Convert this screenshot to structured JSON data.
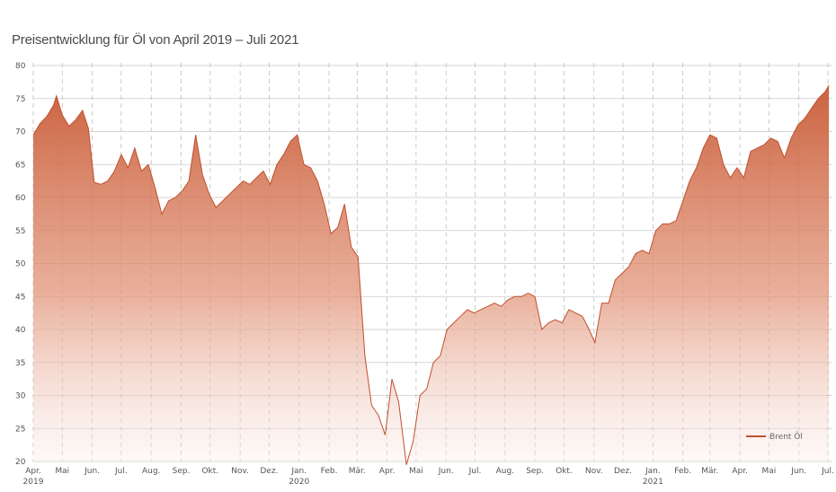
{
  "title": "Preisentwicklung für Öl von April 2019 – Juli 2021",
  "chart_data": {
    "type": "area",
    "title": "Preisentwicklung für Öl von April 2019 – Juli 2021",
    "ylim": [
      20,
      80
    ],
    "yticks": [
      20,
      25,
      30,
      35,
      40,
      45,
      50,
      55,
      60,
      65,
      70,
      75,
      80
    ],
    "grid": true,
    "legend_position": "bottom-right",
    "color": "#c0502e",
    "xticks": [
      {
        "label": "Apr.",
        "year": "2019"
      },
      {
        "label": "Mai"
      },
      {
        "label": "Jun."
      },
      {
        "label": "Jul."
      },
      {
        "label": "Aug."
      },
      {
        "label": "Sep."
      },
      {
        "label": "Okt."
      },
      {
        "label": "Nov."
      },
      {
        "label": "Dez."
      },
      {
        "label": "Jan.",
        "year": "2020"
      },
      {
        "label": "Feb."
      },
      {
        "label": "Mär."
      },
      {
        "label": "Apr."
      },
      {
        "label": "Mai"
      },
      {
        "label": "Jun."
      },
      {
        "label": "Jul."
      },
      {
        "label": "Aug."
      },
      {
        "label": "Sep."
      },
      {
        "label": "Okt."
      },
      {
        "label": "Nov."
      },
      {
        "label": "Dez."
      },
      {
        "label": "Jan.",
        "year": "2021"
      },
      {
        "label": "Feb."
      },
      {
        "label": "Mär."
      },
      {
        "label": "Apr."
      },
      {
        "label": "Mai"
      },
      {
        "label": "Jun."
      },
      {
        "label": "Jul."
      }
    ],
    "series": [
      {
        "name": "Brent Öl",
        "x": [
          "2019-04-01",
          "2019-04-08",
          "2019-04-15",
          "2019-04-22",
          "2019-04-25",
          "2019-05-01",
          "2019-05-08",
          "2019-05-15",
          "2019-05-22",
          "2019-05-28",
          "2019-06-03",
          "2019-06-10",
          "2019-06-17",
          "2019-06-24",
          "2019-07-01",
          "2019-07-08",
          "2019-07-15",
          "2019-07-22",
          "2019-07-29",
          "2019-08-05",
          "2019-08-12",
          "2019-08-19",
          "2019-08-26",
          "2019-09-02",
          "2019-09-09",
          "2019-09-16",
          "2019-09-23",
          "2019-09-30",
          "2019-10-07",
          "2019-10-14",
          "2019-10-21",
          "2019-10-28",
          "2019-11-04",
          "2019-11-11",
          "2019-11-18",
          "2019-11-25",
          "2019-12-02",
          "2019-12-09",
          "2019-12-16",
          "2019-12-23",
          "2019-12-30",
          "2020-01-06",
          "2020-01-13",
          "2020-01-20",
          "2020-01-27",
          "2020-02-03",
          "2020-02-10",
          "2020-02-17",
          "2020-02-24",
          "2020-03-02",
          "2020-03-09",
          "2020-03-16",
          "2020-03-23",
          "2020-03-30",
          "2020-04-06",
          "2020-04-13",
          "2020-04-21",
          "2020-04-28",
          "2020-05-05",
          "2020-05-12",
          "2020-05-19",
          "2020-05-26",
          "2020-06-02",
          "2020-06-09",
          "2020-06-16",
          "2020-06-23",
          "2020-06-30",
          "2020-07-07",
          "2020-07-14",
          "2020-07-21",
          "2020-07-28",
          "2020-08-04",
          "2020-08-11",
          "2020-08-18",
          "2020-08-25",
          "2020-09-01",
          "2020-09-08",
          "2020-09-15",
          "2020-09-22",
          "2020-09-29",
          "2020-10-06",
          "2020-10-13",
          "2020-10-20",
          "2020-10-27",
          "2020-11-02",
          "2020-11-09",
          "2020-11-16",
          "2020-11-23",
          "2020-11-30",
          "2020-12-07",
          "2020-12-14",
          "2020-12-21",
          "2020-12-28",
          "2021-01-04",
          "2021-01-11",
          "2021-01-18",
          "2021-01-25",
          "2021-02-01",
          "2021-02-08",
          "2021-02-15",
          "2021-02-22",
          "2021-03-01",
          "2021-03-08",
          "2021-03-15",
          "2021-03-22",
          "2021-03-29",
          "2021-04-05",
          "2021-04-12",
          "2021-04-19",
          "2021-04-26",
          "2021-05-03",
          "2021-05-10",
          "2021-05-17",
          "2021-05-24",
          "2021-05-31",
          "2021-06-07",
          "2021-06-14",
          "2021-06-21",
          "2021-06-28",
          "2021-07-02"
        ],
        "values": [
          69.5,
          71.2,
          72.3,
          74.0,
          75.4,
          72.5,
          70.8,
          71.8,
          73.2,
          70.5,
          62.3,
          62.0,
          62.5,
          64.0,
          66.5,
          64.5,
          67.5,
          64.0,
          65.0,
          61.5,
          57.5,
          59.5,
          60.0,
          61.0,
          62.5,
          69.5,
          63.5,
          60.5,
          58.5,
          59.5,
          60.5,
          61.5,
          62.5,
          62.0,
          63.0,
          64.0,
          62.0,
          65.0,
          66.5,
          68.5,
          69.5,
          65.0,
          64.5,
          62.5,
          59.0,
          54.5,
          55.5,
          59.0,
          52.5,
          51.0,
          36.0,
          28.5,
          27.0,
          24.0,
          32.5,
          29.0,
          19.5,
          23.0,
          30.0,
          31.0,
          35.0,
          36.0,
          40.0,
          41.0,
          42.0,
          43.0,
          42.5,
          43.0,
          43.5,
          44.0,
          43.5,
          44.5,
          45.0,
          45.0,
          45.5,
          45.0,
          40.0,
          41.0,
          41.5,
          41.0,
          43.0,
          42.5,
          42.0,
          40.0,
          38.0,
          44.0,
          44.0,
          47.5,
          48.5,
          49.5,
          51.5,
          52.0,
          51.5,
          55.0,
          56.0,
          56.0,
          56.5,
          59.5,
          62.5,
          64.5,
          67.5,
          69.5,
          69.0,
          65.0,
          63.0,
          64.5,
          63.0,
          67.0,
          67.5,
          68.0,
          69.0,
          68.5,
          66.0,
          69.0,
          71.0,
          72.0,
          73.5,
          75.0,
          76.0,
          77.0
        ]
      }
    ]
  }
}
